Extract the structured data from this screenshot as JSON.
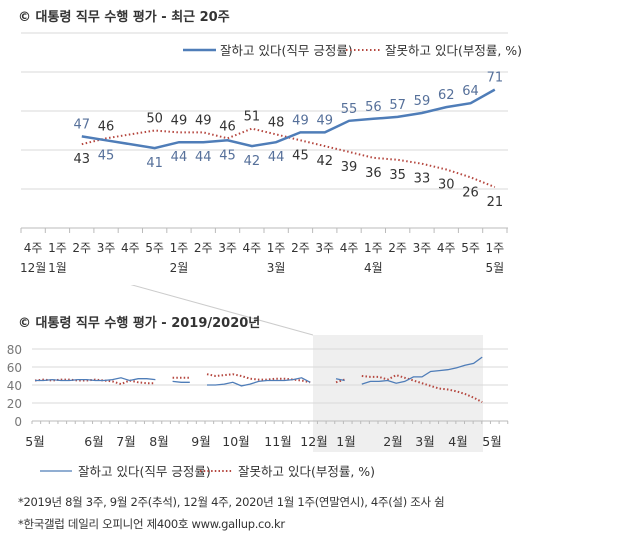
{
  "colors": {
    "positive": "#4f7db8",
    "negative": "#b5473f",
    "grid": "#d9d9d9",
    "shade": "#efefef",
    "pos_label": "#56709a",
    "neg_label": "#333333"
  },
  "chart_data": [
    {
      "type": "line",
      "title": "© 대통령 직무 수행 평가 - 최근 20주",
      "ylim": [
        0,
        100
      ],
      "grid": true,
      "legend": "top-right",
      "categories": [
        "4주",
        "1주",
        "2주",
        "3주",
        "4주",
        "5주",
        "1주",
        "2주",
        "3주",
        "4주",
        "1주",
        "2주",
        "3주",
        "4주",
        "1주",
        "2주",
        "3주",
        "4주",
        "5주",
        "1주"
      ],
      "month_labels": {
        "0": "12월",
        "1": "1월",
        "6": "2월",
        "10": "3월",
        "14": "4월",
        "19": "5월"
      },
      "series": [
        {
          "name": "잘하고 있다(직무 긍정률)",
          "values": [
            null,
            null,
            47,
            45,
            null,
            41,
            44,
            44,
            45,
            42,
            44,
            49,
            49,
            55,
            56,
            57,
            59,
            62,
            64,
            71
          ]
        },
        {
          "name": "잘못하고 있다(부정률, %)",
          "values": [
            null,
            null,
            43,
            46,
            null,
            50,
            49,
            49,
            46,
            51,
            48,
            45,
            42,
            39,
            36,
            35,
            33,
            30,
            26,
            21
          ]
        }
      ]
    },
    {
      "type": "line",
      "title": "© 대통령 직무 수행 평가 - 2019/2020년",
      "ylim": [
        0,
        80
      ],
      "yticks": [
        "0",
        "20",
        "40",
        "60",
        "80"
      ],
      "grid": true,
      "legend": "bottom",
      "month_ticks": [
        "5월",
        "6월",
        "7월",
        "8월",
        "9월",
        "10월",
        "11월",
        "12월",
        "1월",
        "2월",
        "3월",
        "4월",
        "5월"
      ],
      "series": [
        {
          "name": "잘하고 있다(직무 긍정률)",
          "values": [
            45,
            45,
            46,
            45,
            45,
            46,
            46,
            45,
            45,
            46,
            48,
            45,
            47,
            47,
            46,
            null,
            44,
            43,
            43,
            null,
            40,
            40,
            41,
            43,
            39,
            41,
            44,
            45,
            45,
            45,
            46,
            48,
            43,
            null,
            null,
            47,
            45,
            null,
            41,
            44,
            44,
            45,
            42,
            44,
            49,
            49,
            55,
            56,
            57,
            59,
            62,
            64,
            71
          ]
        },
        {
          "name": "잘못하고 있다(부정률, %)",
          "values": [
            45,
            46,
            45,
            46,
            46,
            45,
            45,
            46,
            45,
            44,
            41,
            45,
            43,
            42,
            42,
            null,
            48,
            48,
            48,
            null,
            52,
            50,
            51,
            52,
            50,
            47,
            46,
            46,
            47,
            47,
            46,
            45,
            43,
            null,
            null,
            43,
            46,
            null,
            50,
            49,
            49,
            46,
            51,
            48,
            45,
            42,
            39,
            36,
            35,
            33,
            30,
            26,
            21
          ]
        }
      ]
    }
  ],
  "footnotes": [
    "*2019년 8월 3주, 9월 2주(추석), 12월 4주, 2020년 1월 1주(연말연시), 4주(설)  조사 쉼",
    "*한국갤럽 데일리 오피니언 제400호 www.gallup.co.kr"
  ]
}
